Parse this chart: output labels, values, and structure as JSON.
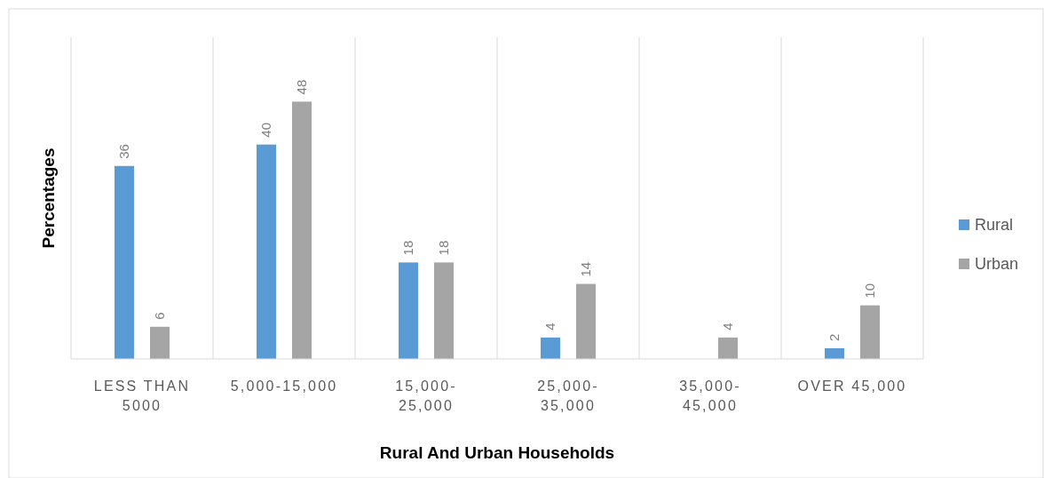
{
  "chart_data": {
    "type": "bar",
    "xlabel": "Rural And Urban Households",
    "ylabel": "Percentages",
    "categories": [
      "LESS THAN 5000",
      "5,000-15,000",
      "15,000-25,000",
      "25,000-35,000",
      "35,000-45,000",
      "OVER 45,000"
    ],
    "series": [
      {
        "name": "Rural",
        "color": "#5b9bd5",
        "values": [
          36,
          40,
          18,
          4,
          null,
          2
        ]
      },
      {
        "name": "Urban",
        "color": "#a5a5a5",
        "values": [
          6,
          48,
          18,
          14,
          4,
          10
        ]
      }
    ],
    "ylim": [
      0,
      60
    ],
    "data_labels": true,
    "grid": "x",
    "legend": "right"
  }
}
